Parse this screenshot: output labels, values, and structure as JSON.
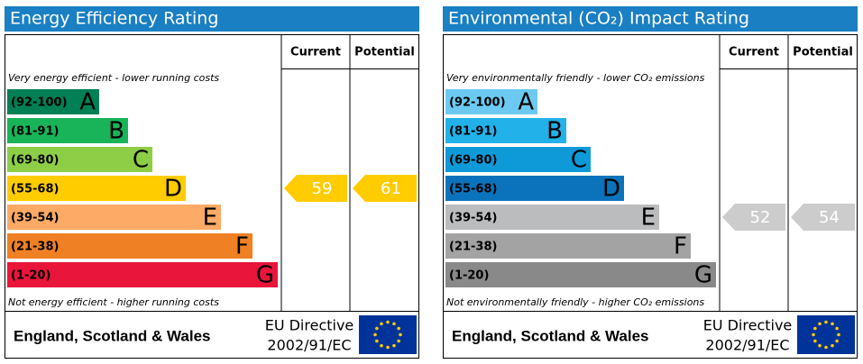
{
  "panels": [
    {
      "title": "Energy Efficiency Rating",
      "columns": [
        "Current",
        "Potential"
      ],
      "top_note": "Very energy efficient - lower running costs",
      "bottom_note": "Not energy efficient - higher running costs",
      "bands": [
        {
          "range": "(92-100)",
          "letter": "A",
          "color": "#008054"
        },
        {
          "range": "(81-91)",
          "letter": "B",
          "color": "#19b459"
        },
        {
          "range": "(69-80)",
          "letter": "C",
          "color": "#8dce46"
        },
        {
          "range": "(55-68)",
          "letter": "D",
          "color": "#ffcc00"
        },
        {
          "range": "(39-54)",
          "letter": "E",
          "color": "#fcaa65"
        },
        {
          "range": "(21-38)",
          "letter": "F",
          "color": "#ef8023"
        },
        {
          "range": "(1-20)",
          "letter": "G",
          "color": "#e9153b"
        }
      ],
      "current": 59,
      "potential": 61,
      "arrow_color": "#ffcc00",
      "footer": "England, Scotland & Wales",
      "directive": [
        "EU Directive",
        "2002/91/EC"
      ]
    },
    {
      "title": "Environmental (CO₂) Impact Rating",
      "columns": [
        "Current",
        "Potential"
      ],
      "top_note": "Very environmentally friendly - lower CO₂ emissions",
      "bottom_note": "Not environmentally friendly - higher CO₂ emissions",
      "bands": [
        {
          "range": "(92-100)",
          "letter": "A",
          "color": "#6ccaf2"
        },
        {
          "range": "(81-91)",
          "letter": "B",
          "color": "#22b1e9"
        },
        {
          "range": "(69-80)",
          "letter": "C",
          "color": "#0e9ad8"
        },
        {
          "range": "(55-68)",
          "letter": "D",
          "color": "#0b73bb"
        },
        {
          "range": "(39-54)",
          "letter": "E",
          "color": "#bbbcbe"
        },
        {
          "range": "(21-38)",
          "letter": "F",
          "color": "#a3a3a3"
        },
        {
          "range": "(1-20)",
          "letter": "G",
          "color": "#898989"
        }
      ],
      "current": 52,
      "potential": 54,
      "arrow_color": "#cccccc",
      "footer": "England, Scotland & Wales",
      "directive": [
        "EU Directive",
        "2002/91/EC"
      ]
    }
  ]
}
